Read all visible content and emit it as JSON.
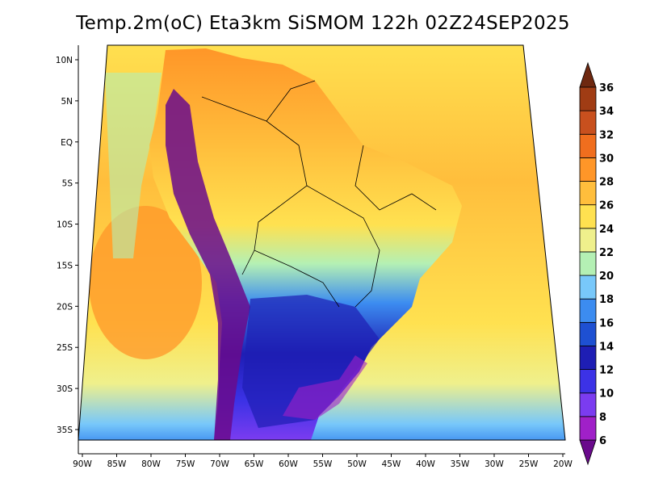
{
  "title": "Temp.2m(oC) Eta3km SiSMOM 122h 02Z24SEP2025",
  "map": {
    "lon_range": [
      -91,
      -20
    ],
    "lat_range": [
      -38,
      12
    ],
    "lon_ticks": [
      {
        "value": -90,
        "label": "90W"
      },
      {
        "value": -85,
        "label": "85W"
      },
      {
        "value": -80,
        "label": "80W"
      },
      {
        "value": -75,
        "label": "75W"
      },
      {
        "value": -70,
        "label": "70W"
      },
      {
        "value": -65,
        "label": "65W"
      },
      {
        "value": -60,
        "label": "60W"
      },
      {
        "value": -55,
        "label": "55W"
      },
      {
        "value": -50,
        "label": "50W"
      },
      {
        "value": -45,
        "label": "45W"
      },
      {
        "value": -40,
        "label": "40W"
      },
      {
        "value": -35,
        "label": "35W"
      },
      {
        "value": -30,
        "label": "30W"
      },
      {
        "value": -25,
        "label": "25W"
      },
      {
        "value": -20,
        "label": "20W"
      }
    ],
    "lat_ticks": [
      {
        "value": 10,
        "label": "10N"
      },
      {
        "value": 5,
        "label": "5N"
      },
      {
        "value": 0,
        "label": "EQ"
      },
      {
        "value": -5,
        "label": "5S"
      },
      {
        "value": -10,
        "label": "10S"
      },
      {
        "value": -15,
        "label": "15S"
      },
      {
        "value": -20,
        "label": "20S"
      },
      {
        "value": -25,
        "label": "25S"
      },
      {
        "value": -30,
        "label": "30S"
      },
      {
        "value": -35,
        "label": "35S"
      }
    ]
  },
  "colorbar": {
    "bounds": [
      6,
      8,
      10,
      12,
      14,
      16,
      18,
      20,
      22,
      24,
      26,
      28,
      30,
      32,
      34,
      36
    ],
    "labels": [
      "6",
      "8",
      "10",
      "12",
      "14",
      "16",
      "18",
      "20",
      "22",
      "24",
      "26",
      "28",
      "30",
      "32",
      "34",
      "36"
    ],
    "colors": [
      "#6a0a8c",
      "#a020c8",
      "#7b3cf0",
      "#3c32e6",
      "#1e1eb4",
      "#1e50d2",
      "#3c8cf0",
      "#78c8fa",
      "#b4f0b4",
      "#eff08c",
      "#ffe150",
      "#ffbe3c",
      "#ff9628",
      "#f06e1e",
      "#c8501e",
      "#a03c14",
      "#6e2810"
    ]
  }
}
